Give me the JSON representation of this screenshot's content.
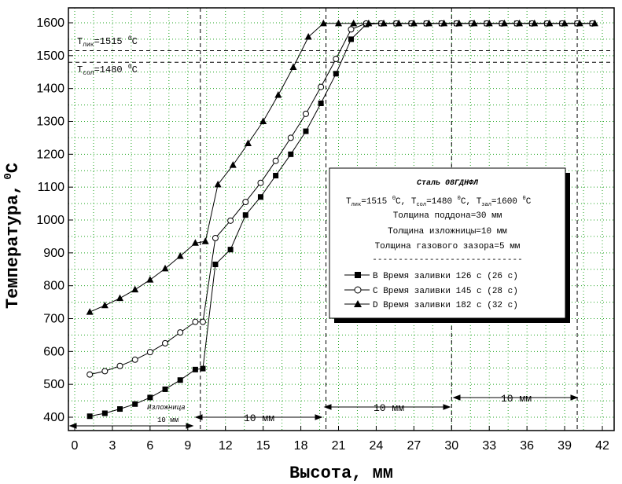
{
  "chart_data": {
    "type": "line",
    "title": "",
    "xlabel": "Высота, мм",
    "ylabel": "Температура,",
    "ylabel_unit": "°C",
    "xlim": [
      0,
      42
    ],
    "ylim": [
      370,
      1640
    ],
    "xticks": [
      0,
      3,
      6,
      9,
      12,
      15,
      18,
      21,
      24,
      27,
      30,
      33,
      36,
      39,
      42
    ],
    "yticks": [
      400,
      500,
      600,
      700,
      800,
      900,
      1000,
      1100,
      1200,
      1300,
      1400,
      1500,
      1600
    ],
    "grid": true,
    "legend_position": "right-center",
    "series": [
      {
        "name": "B",
        "marker": "square-filled",
        "x": [
          1.2,
          2.4,
          3.6,
          4.8,
          6,
          7.2,
          8.4,
          9.6,
          10.2,
          11.2,
          12.4,
          13.6,
          14.8,
          16,
          17.2,
          18.4,
          19.6,
          20.8,
          22,
          23.2,
          24.4,
          25.6,
          26.8,
          28,
          29.2,
          30.4,
          31.6,
          32.8,
          34,
          35.2,
          36.4,
          37.6,
          38.8,
          40,
          41.2
        ],
        "values": [
          403,
          412,
          425,
          440,
          460,
          485,
          513,
          545,
          548,
          865,
          910,
          1015,
          1070,
          1135,
          1200,
          1270,
          1355,
          1445,
          1550,
          1595,
          1598,
          1598,
          1598,
          1598,
          1598,
          1598,
          1598,
          1598,
          1598,
          1598,
          1598,
          1598,
          1598,
          1598,
          1598
        ]
      },
      {
        "name": "C",
        "marker": "circle-open",
        "x": [
          1.2,
          2.4,
          3.6,
          4.8,
          6,
          7.2,
          8.4,
          9.6,
          10.2,
          11.2,
          12.4,
          13.6,
          14.8,
          16,
          17.2,
          18.4,
          19.6,
          20.8,
          22,
          23.2,
          24.4,
          25.6,
          26.8,
          28,
          29.2,
          30.4,
          31.6,
          32.8,
          34,
          35.2,
          36.4,
          37.6,
          38.8,
          40,
          41.2
        ],
        "values": [
          530,
          540,
          556,
          575,
          598,
          625,
          658,
          690,
          690,
          945,
          998,
          1055,
          1113,
          1180,
          1250,
          1323,
          1405,
          1490,
          1580,
          1598,
          1598,
          1598,
          1598,
          1598,
          1598,
          1598,
          1598,
          1598,
          1598,
          1598,
          1598,
          1598,
          1598,
          1598,
          1598
        ]
      },
      {
        "name": "D",
        "marker": "triangle-filled",
        "x": [
          1.2,
          2.4,
          3.6,
          4.8,
          6,
          7.2,
          8.4,
          9.6,
          10.4,
          11.4,
          12.6,
          13.8,
          15,
          16.2,
          17.4,
          18.6,
          19.8,
          21,
          22.2,
          23.4,
          24.6,
          25.8,
          27,
          28.2,
          29.4,
          30.6,
          31.8,
          33,
          34.2,
          35.4,
          36.6,
          37.8,
          39,
          40.2,
          41.4
        ],
        "values": [
          720,
          740,
          762,
          788,
          818,
          852,
          890,
          930,
          935,
          1108,
          1167,
          1233,
          1300,
          1380,
          1465,
          1557,
          1598,
          1598,
          1598,
          1598,
          1598,
          1598,
          1598,
          1598,
          1598,
          1598,
          1598,
          1598,
          1598,
          1598,
          1598,
          1598,
          1598,
          1598,
          1598
        ]
      }
    ],
    "reference_lines": {
      "horizontal": [
        1515,
        1480
      ],
      "vertical": [
        10,
        20,
        30,
        40
      ]
    },
    "annotations": {
      "t_liq_base": "T",
      "t_liq_sub": "лик",
      "t_liq_value": "=1515 ",
      "t_liq_sup": "0",
      "t_liq_unit": "C",
      "t_sol_base": "T",
      "t_sol_sub": "сол",
      "t_sol_value": "=1480 ",
      "t_sol_sup": "0",
      "t_sol_unit": "C",
      "mold_label": "Изложница",
      "mold_dim": "10 мм",
      "segment_labels": [
        "10 мм",
        "10 мм",
        "10 мм"
      ]
    },
    "legend": {
      "title": "Сталь 08ГДНФЛ",
      "params": {
        "t": "T",
        "liq_sub": "лик",
        "liq_value": "=1515 ",
        "sup": "0",
        "c_sep": "C, ",
        "sol_sub": "сол",
        "sol_value": "=1480 ",
        "pour_sub": "зал",
        "pour_value": "=1600 ",
        "c_end": "C"
      },
      "lines": [
        "Толщина поддона=30 мм",
        "Толщина изложницы=10 мм",
        "Толщина газового зазора=5 мм"
      ],
      "separator": "-----------------------------",
      "entries": [
        "B Время заливки 126 с (26 с)",
        "C Время заливки 145 с (28 с)",
        "D Время заливки 182 с (32 с)"
      ]
    }
  }
}
